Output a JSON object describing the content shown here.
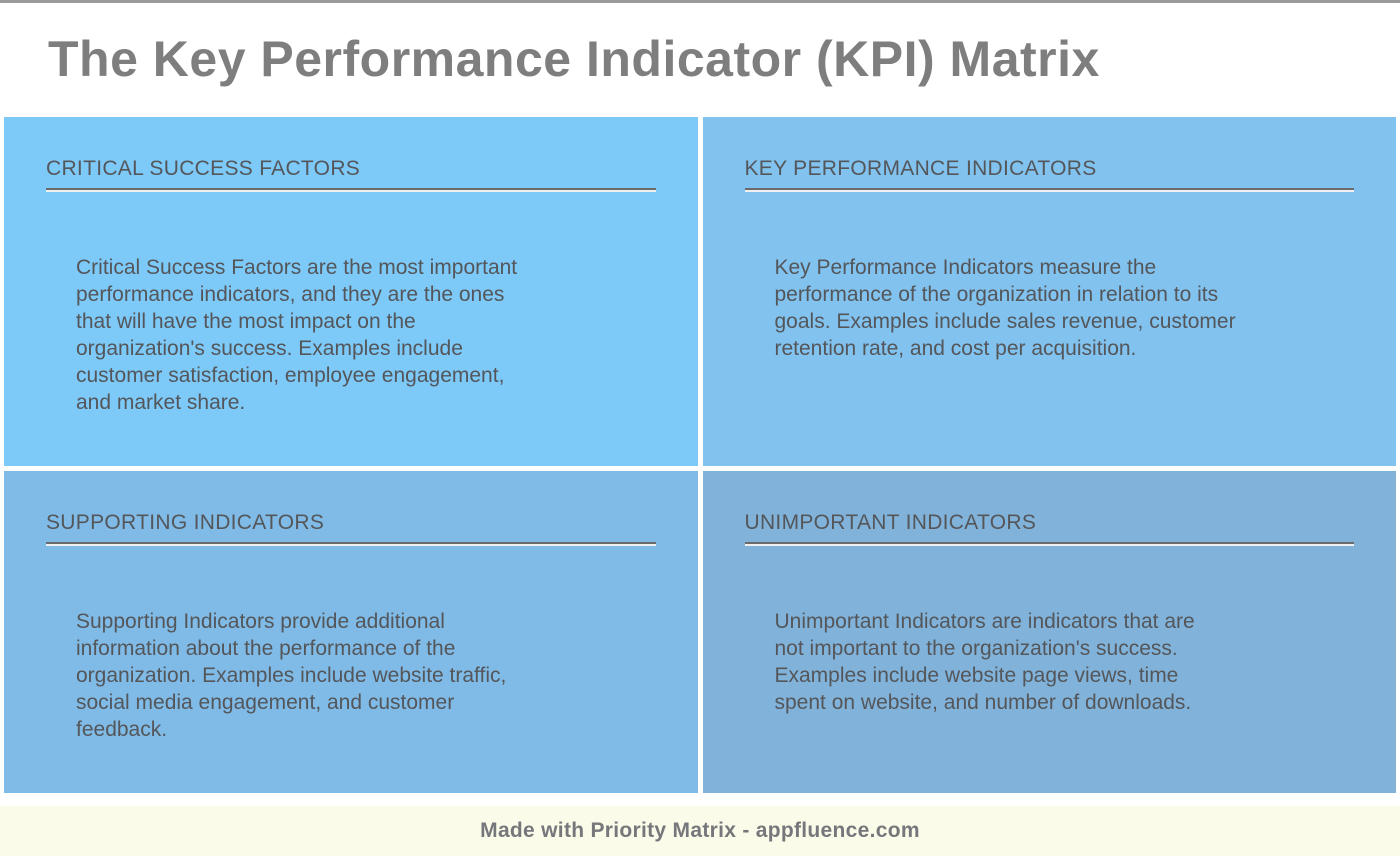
{
  "page": {
    "title": "The Key Performance Indicator (KPI) Matrix",
    "footer_text": "Made with Priority Matrix - appfluence.com"
  },
  "colors": {
    "quadrant_1_bg": "#7DC9F8",
    "quadrant_2_bg": "#81C2EE",
    "quadrant_3_bg": "#7FBBE6",
    "quadrant_4_bg": "#81B3DA",
    "footer_bg": "#FBFBE9",
    "title_text": "#7E7E7E",
    "body_text": "#54565A",
    "top_border": "#9A9A9A"
  },
  "quadrants": [
    {
      "title": "CRITICAL SUCCESS FACTORS",
      "body": "Critical Success Factors are the most important\nperformance indicators, and they are the ones\nthat will have the most impact on the\norganization's success. Examples include\ncustomer satisfaction, employee engagement,\nand market share."
    },
    {
      "title": "KEY PERFORMANCE INDICATORS",
      "body": "Key Performance Indicators measure the\nperformance of the organization in relation to its\ngoals. Examples include sales revenue, customer\nretention rate, and cost per acquisition."
    },
    {
      "title": "SUPPORTING INDICATORS",
      "body": "Supporting Indicators provide additional\ninformation about the performance of the\norganization. Examples include website traffic,\nsocial media engagement, and customer\nfeedback."
    },
    {
      "title": "UNIMPORTANT INDICATORS",
      "body": "Unimportant Indicators are indicators that are\nnot important to the organization's success.\nExamples include website page views, time\nspent on website, and number of downloads."
    }
  ]
}
